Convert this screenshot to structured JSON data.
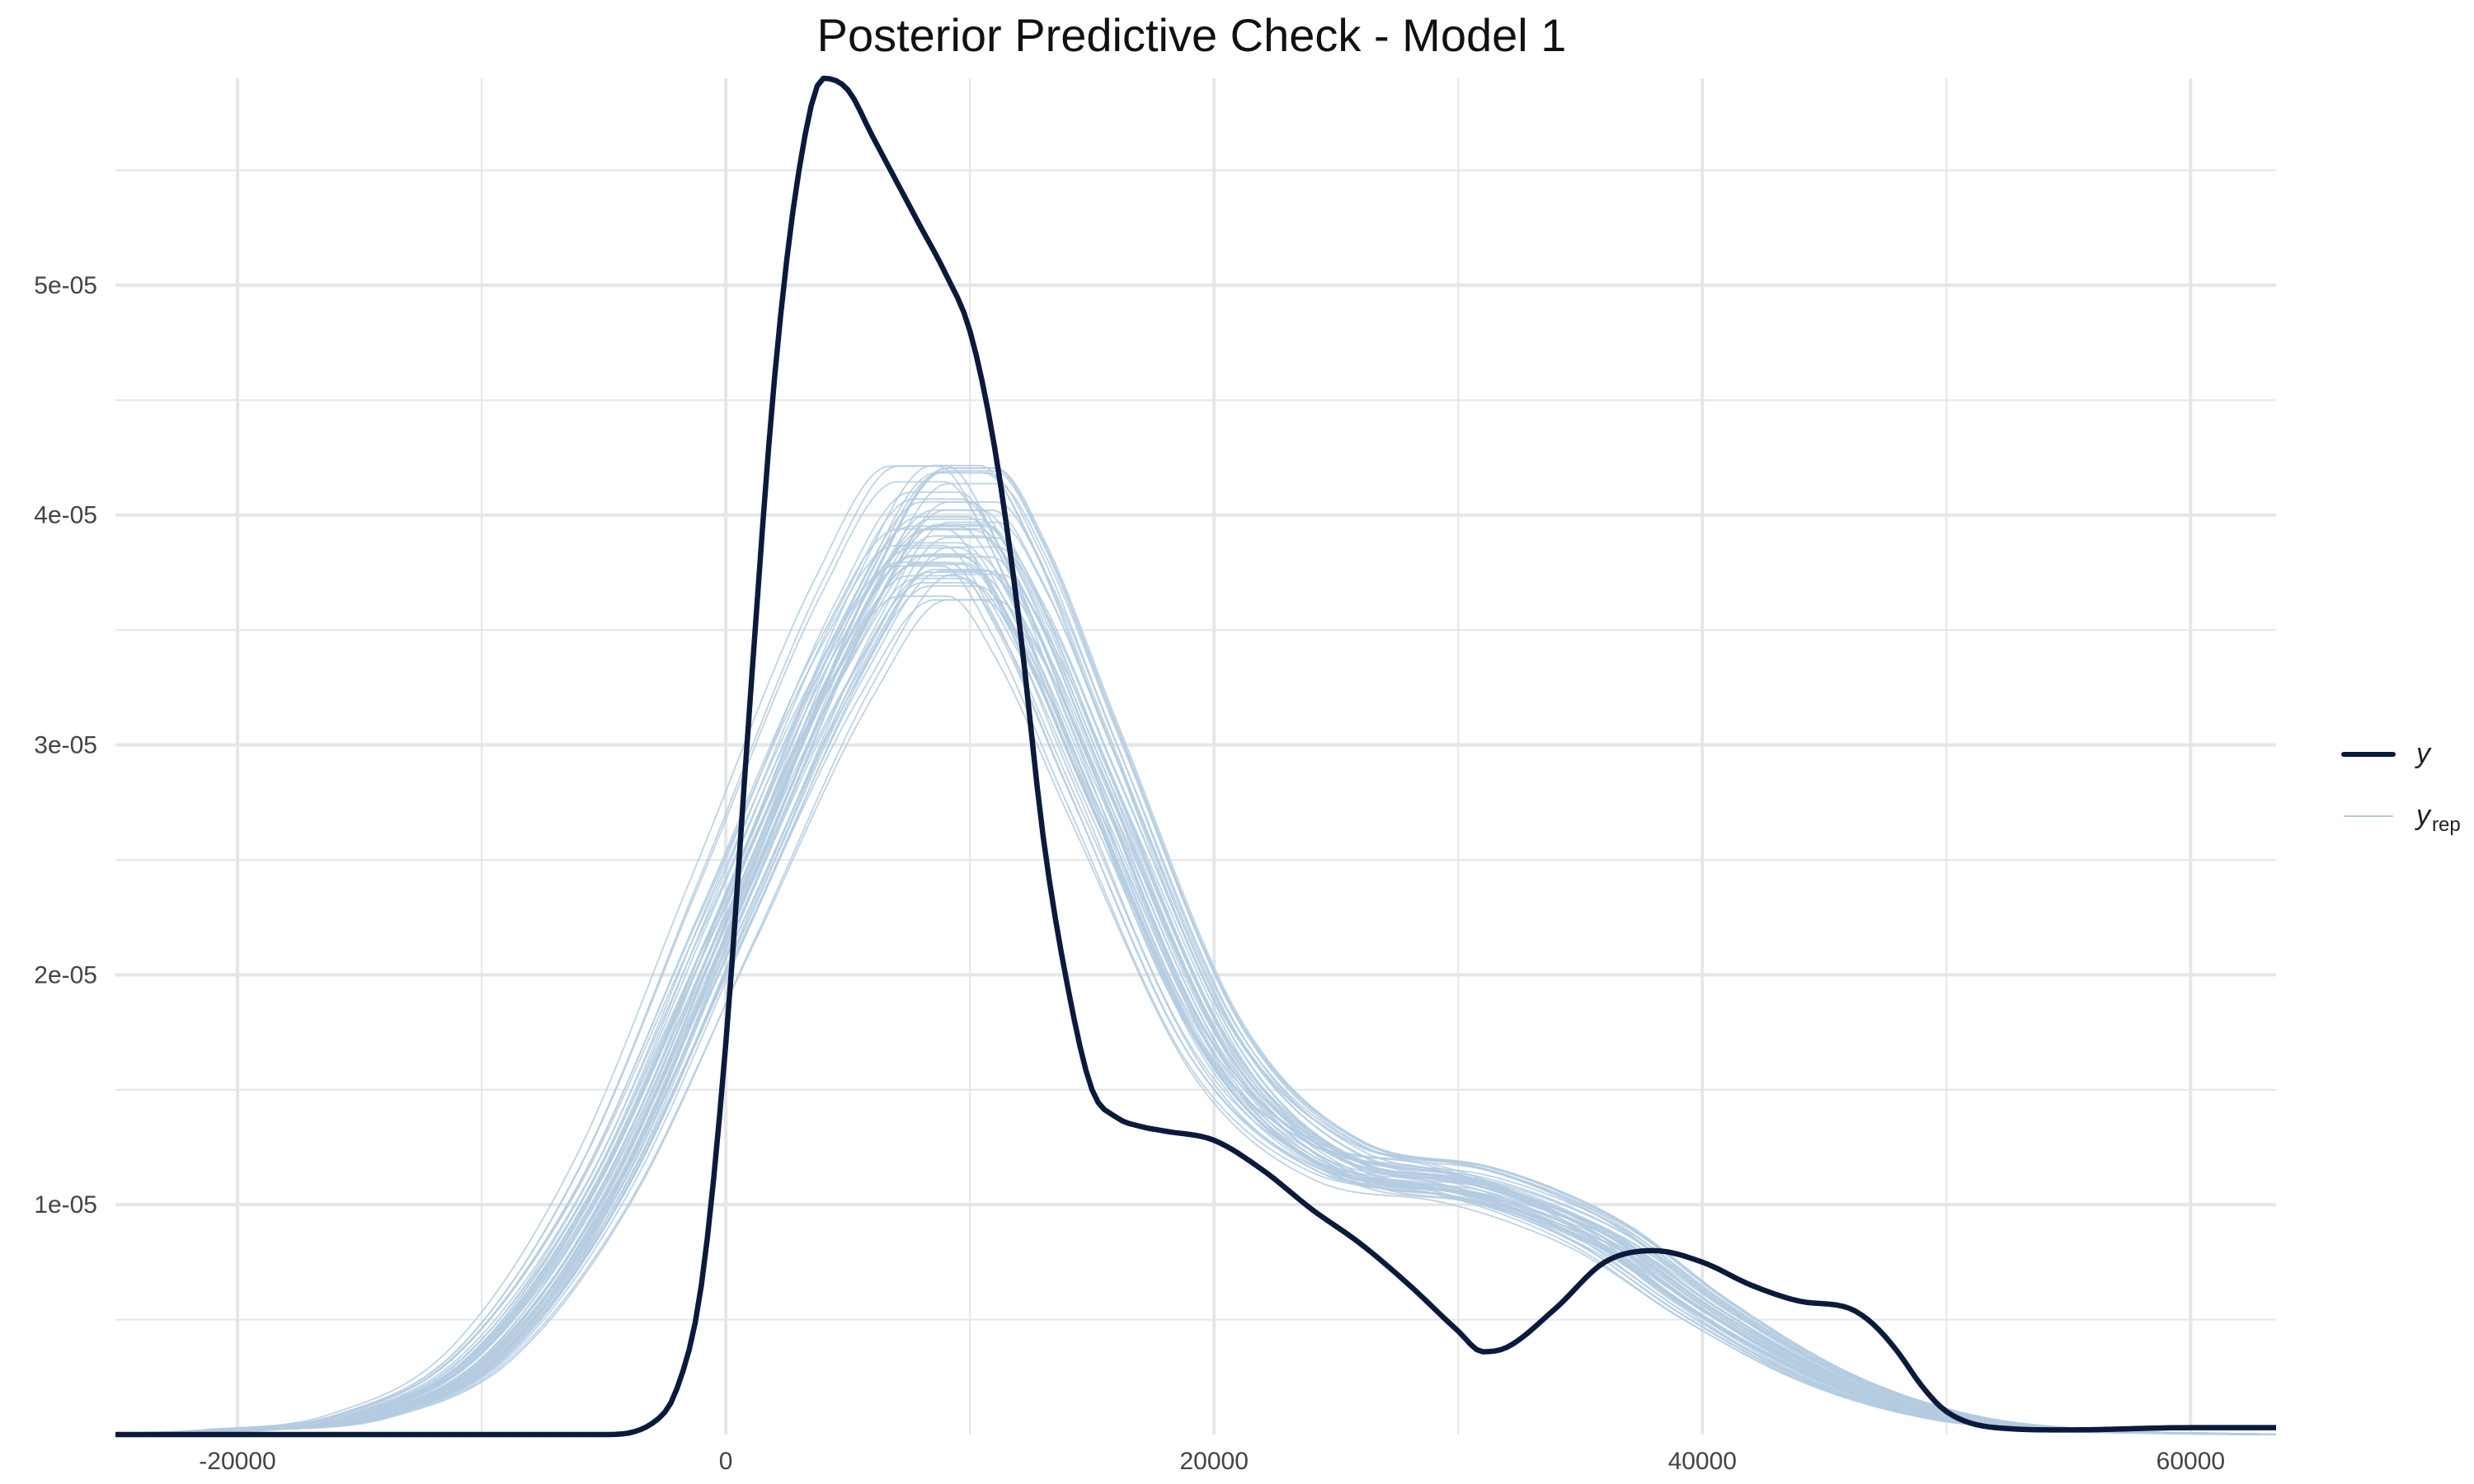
{
  "chart_data": {
    "type": "line",
    "title": "Posterior Predictive Check - Model 1",
    "xlabel": "",
    "ylabel": "",
    "xlim": [
      -25000,
      63500
    ],
    "ylim": [
      0,
      5.9e-05
    ],
    "x_ticks": [
      -20000,
      0,
      20000,
      40000,
      60000
    ],
    "x_tick_labels": [
      "-20000",
      "0",
      "20000",
      "40000",
      "60000"
    ],
    "y_ticks": [
      1e-05,
      2e-05,
      3e-05,
      4e-05,
      5e-05
    ],
    "y_tick_labels": [
      "1e-05",
      "2e-05",
      "3e-05",
      "4e-05",
      "5e-05"
    ],
    "grid": true,
    "legend_position": "right",
    "colors": {
      "y": "#0b1a3c",
      "y_rep": "#b3cbe0",
      "grid": "#e6e6e6"
    },
    "legend": [
      {
        "key": "y",
        "label": "y",
        "subscript": ""
      },
      {
        "key": "y_rep",
        "label": "y",
        "subscript": "rep"
      }
    ],
    "series": [
      {
        "name": "y",
        "x": [
          -25000,
          -5000,
          -3000,
          -2000,
          -1000,
          0,
          1000,
          2000,
          3000,
          4000,
          5000,
          6000,
          7000,
          8000,
          9000,
          10000,
          11000,
          12000,
          13000,
          14000,
          15000,
          16000,
          17000,
          18000,
          20000,
          22000,
          24000,
          26000,
          28000,
          30000,
          31000,
          32000,
          34000,
          36000,
          38000,
          40000,
          42000,
          44000,
          46000,
          47000,
          48000,
          49000,
          50000,
          52000,
          55000,
          60000,
          63500
        ],
        "y": [
          0,
          0,
          5e-07,
          2e-06,
          6.5e-06,
          1.7e-05,
          3.2e-05,
          4.6e-05,
          5.5e-05,
          5.9e-05,
          5.85e-05,
          5.65e-05,
          5.45e-05,
          5.25e-05,
          5.05e-05,
          4.8e-05,
          4.3e-05,
          3.55e-05,
          2.6e-05,
          1.95e-05,
          1.5e-05,
          1.38e-05,
          1.34e-05,
          1.32e-05,
          1.28e-05,
          1.15e-05,
          9.8e-06,
          8.3e-06,
          6.5e-06,
          4.5e-06,
          3.6e-06,
          3.8e-06,
          5.5e-06,
          7.5e-06,
          8e-06,
          7.5e-06,
          6.5e-06,
          5.8e-06,
          5.5e-06,
          4.8e-06,
          3.6e-06,
          2.1e-06,
          1e-06,
          3e-07,
          2e-07,
          3e-07,
          3e-07
        ]
      },
      {
        "name": "y_rep",
        "x": [
          -25000,
          -20000,
          -15000,
          -10000,
          -5000,
          0,
          5000,
          8000,
          10000,
          12000,
          15000,
          20000,
          25000,
          30000,
          33000,
          36000,
          40000,
          45000,
          50000,
          55000,
          60000,
          63500
        ],
        "y": [
          0,
          2e-07,
          8e-07,
          3.5e-06,
          1.1e-05,
          2.3e-05,
          3.5e-05,
          3.95e-05,
          3.95e-05,
          3.65e-05,
          2.9e-05,
          1.7e-05,
          1.2e-05,
          1.1e-05,
          1e-05,
          8.5e-06,
          5.5e-06,
          2.5e-06,
          8e-07,
          2e-07,
          5e-08,
          0
        ]
      }
    ]
  }
}
